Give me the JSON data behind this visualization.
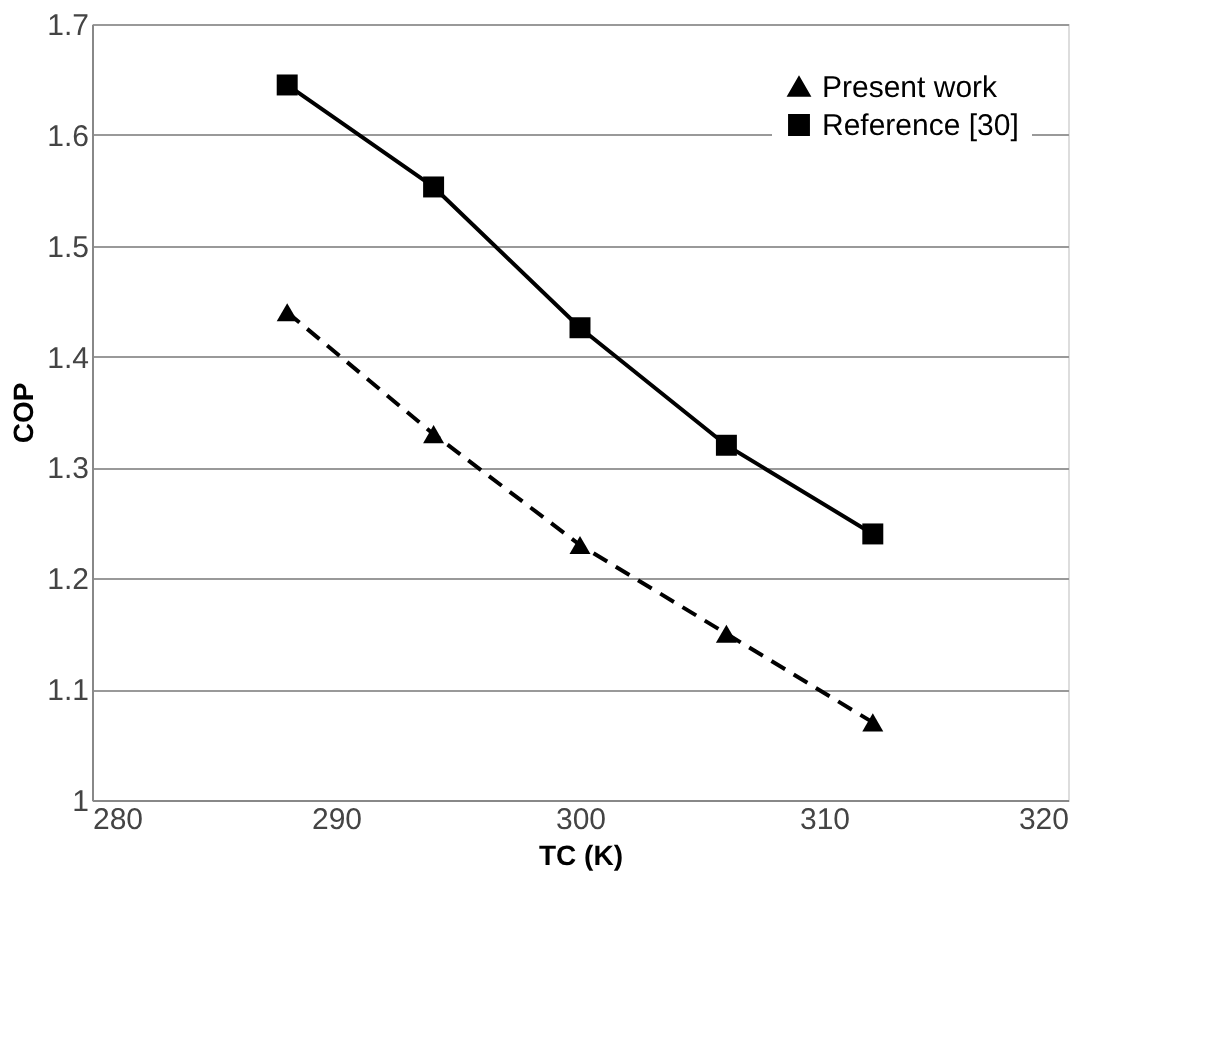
{
  "chart_data": {
    "type": "line",
    "xlabel": "TC (K)",
    "ylabel": "COP",
    "x": [
      288,
      294,
      300,
      306,
      312
    ],
    "series": [
      {
        "name": "Present work",
        "color": "#000000",
        "values": [
          1.44,
          1.33,
          1.23,
          1.15,
          1.07
        ],
        "marker": "triangle",
        "line_style": "dashed"
      },
      {
        "name": "Reference [30]",
        "color": "#000000",
        "values": [
          1.645,
          1.553,
          1.426,
          1.32,
          1.24
        ],
        "marker": "square",
        "line_style": "solid"
      }
    ],
    "xlim": [
      280,
      320
    ],
    "xticks": [
      280,
      290,
      300,
      310,
      320
    ],
    "ylim": [
      1,
      1.7
    ],
    "yticks": [
      1,
      1.1,
      1.2,
      1.3,
      1.4,
      1.5,
      1.6,
      1.7
    ],
    "grid": "y",
    "legend": "top right"
  }
}
